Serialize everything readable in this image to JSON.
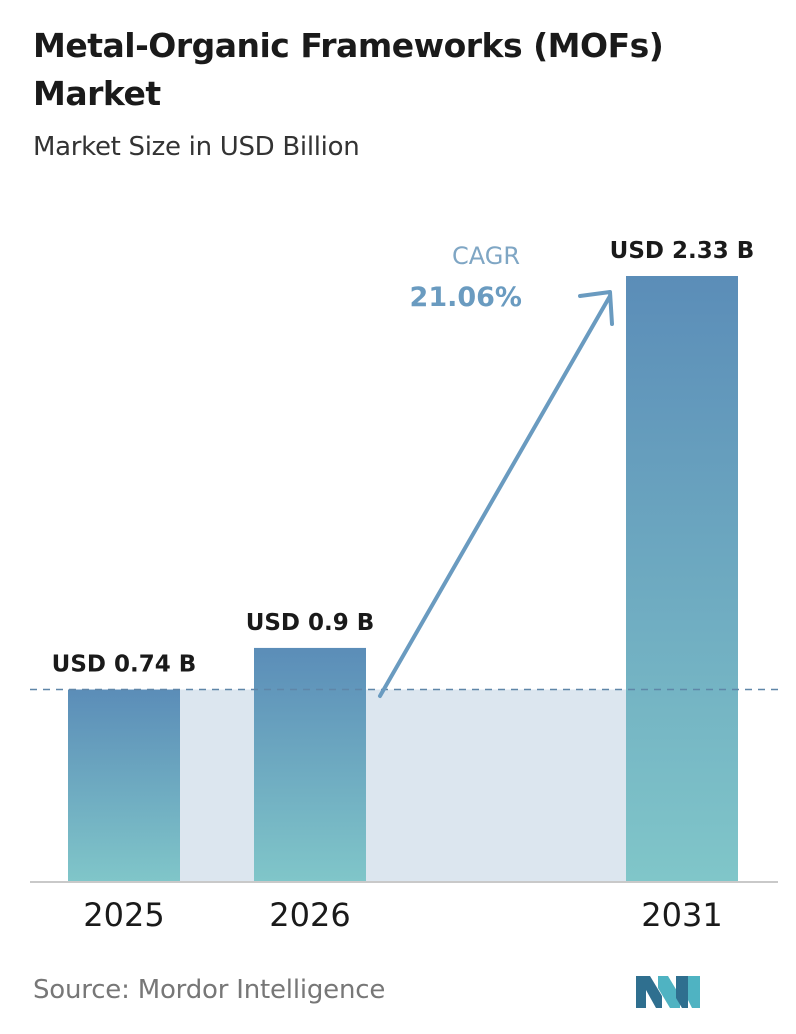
{
  "header": {
    "title": "Metal-Organic Frameworks (MOFs) Market",
    "subtitle": "Market Size in USD Billion"
  },
  "footer": {
    "source": "Source: Mordor Intelligence"
  },
  "cagr": {
    "label": "CAGR",
    "value": "21.06%"
  },
  "colors": {
    "bar_top": "#5b8db8",
    "bar_bottom": "#80c6c9",
    "band": "#dce6ef",
    "dashed_line": "#5f86a8",
    "arrow": "#6a9bc0",
    "cagr_label": "#7fa6c4",
    "axis": "#c9c9c9",
    "logo_dark": "#2f6f8f",
    "logo_light": "#4fb3c2"
  },
  "chart_data": {
    "type": "bar",
    "title": "Metal-Organic Frameworks (MOFs) Market",
    "subtitle": "Market Size in USD Billion",
    "categories": [
      "2025",
      "2026",
      "2031"
    ],
    "values": [
      0.74,
      0.9,
      2.33
    ],
    "data_labels": [
      "USD 0.74 B",
      "USD 0.9 B",
      "USD 2.33 B"
    ],
    "unit": "USD Billion",
    "grid": false,
    "reference_line": 0.74
  }
}
